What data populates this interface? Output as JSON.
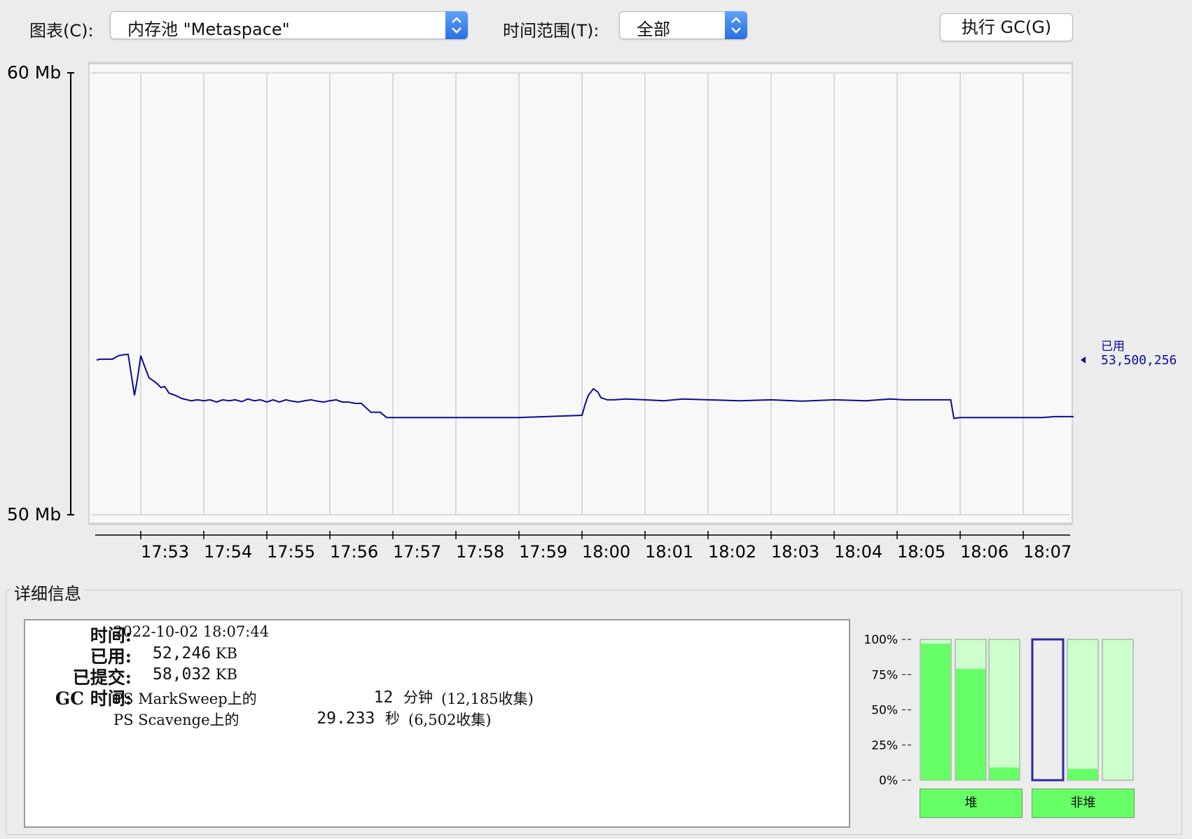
{
  "toolbar": {
    "chart_label": "图表(C):",
    "chart_select_value": "内存池 \"Metaspace\"",
    "time_range_label": "时间范围(T):",
    "time_range_value": "全部",
    "gc_button_label": "执行 GC(G)"
  },
  "chart_data": {
    "type": "line",
    "ylabel_top": "60 Mb",
    "ylabel_bottom": "50 Mb",
    "ylim_mb": [
      50,
      60
    ],
    "x_tick_labels": [
      "17:53",
      "17:54",
      "17:55",
      "17:56",
      "17:57",
      "17:58",
      "17:59",
      "18:00",
      "18:01",
      "18:02",
      "18:03",
      "18:04",
      "18:05",
      "18:06",
      "18:07"
    ],
    "x_range_minutes": [
      -0.72,
      14.8
    ],
    "series": [
      {
        "name": "已用",
        "color": "#0b0b99",
        "x_min": [
          -0.7,
          -0.65,
          -0.45,
          -0.35,
          -0.28,
          -0.2,
          -0.1,
          -0.05,
          0.0,
          0.05,
          0.13,
          0.2,
          0.25,
          0.32,
          0.38,
          0.45,
          0.55,
          0.65,
          0.8,
          0.9,
          1.0,
          1.1,
          1.2,
          1.3,
          1.4,
          1.5,
          1.6,
          1.7,
          1.8,
          1.9,
          2.0,
          2.1,
          2.2,
          2.3,
          2.4,
          2.5,
          2.6,
          2.7,
          2.8,
          2.9,
          3.0,
          3.1,
          3.2,
          3.3,
          3.4,
          3.5,
          3.65,
          3.8,
          3.9,
          4.0,
          4.1,
          4.2,
          4.3,
          5.0,
          6.0,
          7.0,
          7.05,
          7.1,
          7.18,
          7.25,
          7.3,
          7.4,
          7.5,
          7.7,
          8.0,
          8.3,
          8.6,
          9.0,
          9.5,
          10.0,
          10.5,
          11.0,
          11.5,
          11.9,
          12.1,
          12.3,
          12.5,
          12.7,
          12.85,
          12.9,
          13.0,
          13.2,
          13.5,
          14.0,
          14.3,
          14.5,
          14.8
        ],
        "y_mb": [
          53.5,
          53.52,
          53.52,
          53.6,
          53.62,
          53.63,
          52.7,
          53.1,
          53.6,
          53.4,
          53.1,
          53.03,
          52.98,
          52.88,
          52.9,
          52.75,
          52.7,
          52.63,
          52.58,
          52.6,
          52.58,
          52.6,
          52.55,
          52.6,
          52.58,
          52.6,
          52.56,
          52.62,
          52.58,
          52.6,
          52.55,
          52.6,
          52.55,
          52.6,
          52.57,
          52.55,
          52.58,
          52.6,
          52.57,
          52.55,
          52.58,
          52.6,
          52.55,
          52.55,
          52.52,
          52.52,
          52.32,
          52.32,
          52.2,
          52.2,
          52.2,
          52.2,
          52.2,
          52.2,
          52.2,
          52.25,
          52.5,
          52.7,
          52.85,
          52.78,
          52.65,
          52.6,
          52.6,
          52.62,
          52.6,
          52.58,
          52.62,
          52.6,
          52.58,
          52.6,
          52.57,
          52.6,
          52.58,
          52.62,
          52.6,
          52.6,
          52.6,
          52.6,
          52.6,
          52.18,
          52.2,
          52.2,
          52.2,
          52.2,
          52.2,
          52.22,
          52.22
        ]
      }
    ],
    "current_value_label": "已用",
    "current_value": "53,500,256",
    "grid": true
  },
  "details": {
    "group_title": "详细信息",
    "time_label": "时间:",
    "time_value": "2022-10-02 18:07:44",
    "used_label": "已用:",
    "used_value": "52,246",
    "used_unit": "KB",
    "committed_label": "已提交:",
    "committed_value": "58,032",
    "committed_unit": "KB",
    "gc_label": "GC 时间:",
    "gc_rows": [
      {
        "collector": "PS MarkSweep上的",
        "amount": "12",
        "unit": "分钟",
        "count": "(12,185收集)"
      },
      {
        "collector": "PS Scavenge上的",
        "amount": "29.233",
        "unit": "秒",
        "count": "(6,502收集)"
      }
    ]
  },
  "pools": {
    "scale_labels": [
      "100%",
      "75%",
      "50%",
      "25%",
      "0%"
    ],
    "bars": [
      {
        "group": "heap",
        "used_pct": 97
      },
      {
        "group": "heap",
        "used_pct": 79
      },
      {
        "group": "heap",
        "used_pct": 9
      },
      {
        "group": "nonheap",
        "used_pct": 0,
        "selected": true
      },
      {
        "group": "nonheap",
        "used_pct": 8
      },
      {
        "group": "nonheap",
        "used_pct": 0
      }
    ],
    "heap_button": "堆",
    "nonheap_button": "非堆",
    "fill_color": "#66ff66",
    "empty_color": "#ccffcc",
    "selected_border": "#2a2aa8"
  }
}
